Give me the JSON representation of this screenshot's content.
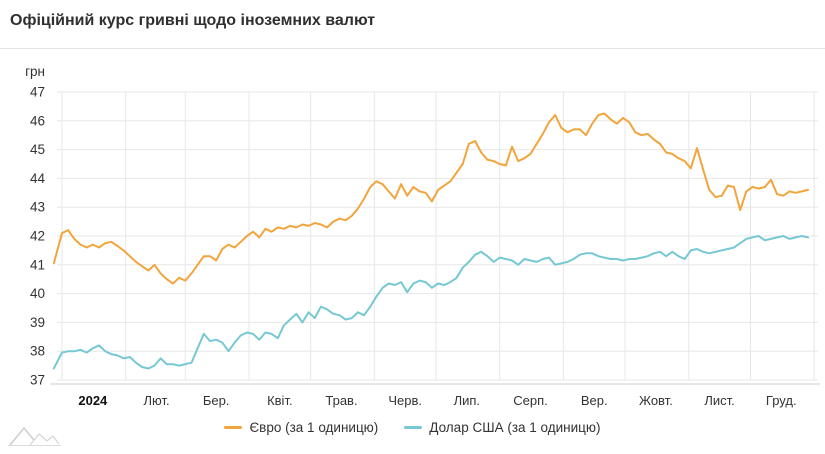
{
  "header": {
    "title": "Офіційний курс гривні щодо іноземних валют"
  },
  "chart_data": {
    "type": "line",
    "title": "Офіційний курс гривні щодо іноземних валют",
    "ylabel": "грн",
    "ylim": [
      37,
      47
    ],
    "ytick_step": 1,
    "grid": "on",
    "legend_position": "bottom-center",
    "x_axis": {
      "month_labels": [
        "2024",
        "Лют.",
        "Бер.",
        "Квіт.",
        "Трав.",
        "Черв.",
        "Лип.",
        "Серп.",
        "Вер.",
        "Жовт.",
        "Лист.",
        "Груд."
      ],
      "month_start_days": [
        0,
        31,
        60,
        91,
        121,
        152,
        182,
        213,
        244,
        274,
        305,
        335
      ]
    },
    "days": [
      -4,
      0,
      3,
      6,
      9,
      12,
      15,
      18,
      21,
      24,
      27,
      30,
      33,
      36,
      39,
      42,
      45,
      48,
      51,
      54,
      57,
      60,
      63,
      66,
      69,
      72,
      75,
      78,
      81,
      84,
      87,
      90,
      93,
      96,
      99,
      102,
      105,
      108,
      111,
      114,
      117,
      120,
      123,
      126,
      129,
      132,
      135,
      138,
      141,
      144,
      147,
      150,
      153,
      156,
      159,
      162,
      165,
      168,
      171,
      174,
      177,
      180,
      183,
      186,
      189,
      192,
      195,
      198,
      201,
      204,
      207,
      210,
      213,
      216,
      219,
      222,
      225,
      228,
      231,
      234,
      237,
      240,
      243,
      246,
      249,
      252,
      255,
      258,
      261,
      264,
      267,
      270,
      273,
      276,
      279,
      282,
      285,
      288,
      291,
      294,
      297,
      300,
      303,
      306,
      309,
      312,
      315,
      318,
      321,
      324,
      327,
      330,
      333,
      336,
      339,
      342,
      345,
      348,
      351,
      354,
      357,
      360,
      363
    ],
    "series": [
      {
        "name": "Євро (за 1 одиницю)",
        "data_name": "euro-series-line",
        "color": "#f2a43d",
        "values": [
          41.05,
          42.1,
          42.2,
          41.9,
          41.7,
          41.6,
          41.7,
          41.6,
          41.75,
          41.8,
          41.65,
          41.5,
          41.3,
          41.1,
          40.95,
          40.8,
          41.0,
          40.7,
          40.5,
          40.35,
          40.55,
          40.45,
          40.7,
          41.0,
          41.3,
          41.3,
          41.15,
          41.55,
          41.7,
          41.6,
          41.8,
          42.0,
          42.15,
          41.95,
          42.25,
          42.15,
          42.3,
          42.25,
          42.35,
          42.3,
          42.4,
          42.35,
          42.45,
          42.4,
          42.3,
          42.5,
          42.6,
          42.55,
          42.7,
          42.95,
          43.3,
          43.7,
          43.9,
          43.8,
          43.55,
          43.3,
          43.8,
          43.4,
          43.7,
          43.55,
          43.5,
          43.2,
          43.6,
          43.75,
          43.9,
          44.2,
          44.5,
          45.2,
          45.3,
          44.9,
          44.65,
          44.6,
          44.5,
          44.45,
          45.1,
          44.6,
          44.7,
          44.85,
          45.2,
          45.55,
          45.95,
          46.2,
          45.75,
          45.6,
          45.7,
          45.7,
          45.5,
          45.9,
          46.2,
          46.25,
          46.05,
          45.9,
          46.1,
          45.95,
          45.6,
          45.5,
          45.55,
          45.35,
          45.2,
          44.9,
          44.85,
          44.7,
          44.6,
          44.35,
          45.05,
          44.3,
          43.6,
          43.35,
          43.4,
          43.75,
          43.7,
          42.9,
          43.55,
          43.7,
          43.65,
          43.7,
          43.95,
          43.45,
          43.4,
          43.55,
          43.5,
          43.55,
          43.6
        ]
      },
      {
        "name": "Долар США (за 1 одиницю)",
        "data_name": "usd-series-line",
        "color": "#76c8d3",
        "values": [
          37.4,
          37.95,
          38.0,
          38.0,
          38.05,
          37.95,
          38.1,
          38.2,
          38.0,
          37.9,
          37.85,
          37.75,
          37.8,
          37.6,
          37.45,
          37.4,
          37.5,
          37.75,
          37.55,
          37.55,
          37.5,
          37.55,
          37.6,
          38.1,
          38.6,
          38.35,
          38.4,
          38.3,
          38.0,
          38.3,
          38.55,
          38.65,
          38.6,
          38.4,
          38.65,
          38.6,
          38.45,
          38.9,
          39.1,
          39.3,
          39.0,
          39.35,
          39.15,
          39.55,
          39.45,
          39.3,
          39.25,
          39.1,
          39.15,
          39.35,
          39.25,
          39.55,
          39.9,
          40.2,
          40.35,
          40.3,
          40.4,
          40.05,
          40.35,
          40.45,
          40.4,
          40.2,
          40.35,
          40.3,
          40.4,
          40.55,
          40.9,
          41.1,
          41.35,
          41.45,
          41.3,
          41.1,
          41.25,
          41.2,
          41.15,
          41.0,
          41.2,
          41.15,
          41.1,
          41.2,
          41.25,
          41.0,
          41.05,
          41.1,
          41.2,
          41.35,
          41.4,
          41.4,
          41.3,
          41.25,
          41.2,
          41.2,
          41.15,
          41.2,
          41.2,
          41.25,
          41.3,
          41.4,
          41.45,
          41.3,
          41.45,
          41.3,
          41.2,
          41.5,
          41.55,
          41.45,
          41.4,
          41.45,
          41.5,
          41.55,
          41.6,
          41.75,
          41.9,
          41.95,
          42.0,
          41.85,
          41.9,
          41.95,
          42.0,
          41.9,
          41.95,
          42.0,
          41.95
        ]
      }
    ],
    "colors": {
      "grid": "#e7e7e7",
      "axis_line": "#cccccc",
      "text": "#333333"
    }
  }
}
